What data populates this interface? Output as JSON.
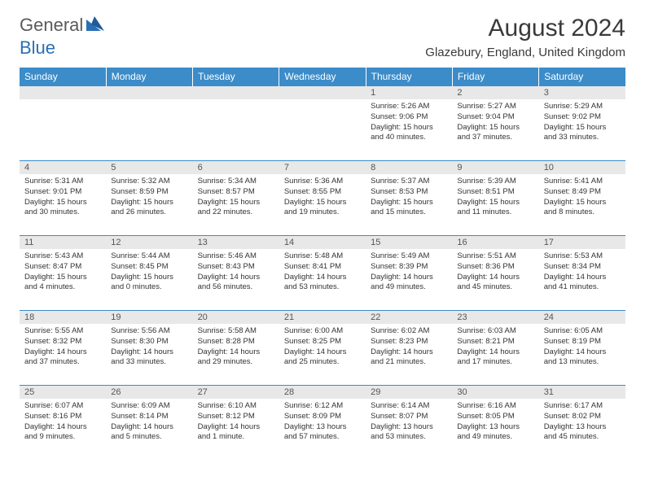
{
  "logo": {
    "text1": "General",
    "text2": "Blue"
  },
  "title": "August 2024",
  "location": "Glazebury, England, United Kingdom",
  "colors": {
    "header_bg": "#3b8cc9",
    "header_fg": "#ffffff",
    "daynum_bg": "#e8e8e8",
    "row_border": "#3b8cc9",
    "text": "#333333",
    "title_color": "#3a3a3a"
  },
  "weekdays": [
    "Sunday",
    "Monday",
    "Tuesday",
    "Wednesday",
    "Thursday",
    "Friday",
    "Saturday"
  ],
  "weeks": [
    [
      null,
      null,
      null,
      null,
      {
        "n": "1",
        "sr": "Sunrise: 5:26 AM",
        "ss": "Sunset: 9:06 PM",
        "dl": "Daylight: 15 hours and 40 minutes."
      },
      {
        "n": "2",
        "sr": "Sunrise: 5:27 AM",
        "ss": "Sunset: 9:04 PM",
        "dl": "Daylight: 15 hours and 37 minutes."
      },
      {
        "n": "3",
        "sr": "Sunrise: 5:29 AM",
        "ss": "Sunset: 9:02 PM",
        "dl": "Daylight: 15 hours and 33 minutes."
      }
    ],
    [
      {
        "n": "4",
        "sr": "Sunrise: 5:31 AM",
        "ss": "Sunset: 9:01 PM",
        "dl": "Daylight: 15 hours and 30 minutes."
      },
      {
        "n": "5",
        "sr": "Sunrise: 5:32 AM",
        "ss": "Sunset: 8:59 PM",
        "dl": "Daylight: 15 hours and 26 minutes."
      },
      {
        "n": "6",
        "sr": "Sunrise: 5:34 AM",
        "ss": "Sunset: 8:57 PM",
        "dl": "Daylight: 15 hours and 22 minutes."
      },
      {
        "n": "7",
        "sr": "Sunrise: 5:36 AM",
        "ss": "Sunset: 8:55 PM",
        "dl": "Daylight: 15 hours and 19 minutes."
      },
      {
        "n": "8",
        "sr": "Sunrise: 5:37 AM",
        "ss": "Sunset: 8:53 PM",
        "dl": "Daylight: 15 hours and 15 minutes."
      },
      {
        "n": "9",
        "sr": "Sunrise: 5:39 AM",
        "ss": "Sunset: 8:51 PM",
        "dl": "Daylight: 15 hours and 11 minutes."
      },
      {
        "n": "10",
        "sr": "Sunrise: 5:41 AM",
        "ss": "Sunset: 8:49 PM",
        "dl": "Daylight: 15 hours and 8 minutes."
      }
    ],
    [
      {
        "n": "11",
        "sr": "Sunrise: 5:43 AM",
        "ss": "Sunset: 8:47 PM",
        "dl": "Daylight: 15 hours and 4 minutes."
      },
      {
        "n": "12",
        "sr": "Sunrise: 5:44 AM",
        "ss": "Sunset: 8:45 PM",
        "dl": "Daylight: 15 hours and 0 minutes."
      },
      {
        "n": "13",
        "sr": "Sunrise: 5:46 AM",
        "ss": "Sunset: 8:43 PM",
        "dl": "Daylight: 14 hours and 56 minutes."
      },
      {
        "n": "14",
        "sr": "Sunrise: 5:48 AM",
        "ss": "Sunset: 8:41 PM",
        "dl": "Daylight: 14 hours and 53 minutes."
      },
      {
        "n": "15",
        "sr": "Sunrise: 5:49 AM",
        "ss": "Sunset: 8:39 PM",
        "dl": "Daylight: 14 hours and 49 minutes."
      },
      {
        "n": "16",
        "sr": "Sunrise: 5:51 AM",
        "ss": "Sunset: 8:36 PM",
        "dl": "Daylight: 14 hours and 45 minutes."
      },
      {
        "n": "17",
        "sr": "Sunrise: 5:53 AM",
        "ss": "Sunset: 8:34 PM",
        "dl": "Daylight: 14 hours and 41 minutes."
      }
    ],
    [
      {
        "n": "18",
        "sr": "Sunrise: 5:55 AM",
        "ss": "Sunset: 8:32 PM",
        "dl": "Daylight: 14 hours and 37 minutes."
      },
      {
        "n": "19",
        "sr": "Sunrise: 5:56 AM",
        "ss": "Sunset: 8:30 PM",
        "dl": "Daylight: 14 hours and 33 minutes."
      },
      {
        "n": "20",
        "sr": "Sunrise: 5:58 AM",
        "ss": "Sunset: 8:28 PM",
        "dl": "Daylight: 14 hours and 29 minutes."
      },
      {
        "n": "21",
        "sr": "Sunrise: 6:00 AM",
        "ss": "Sunset: 8:25 PM",
        "dl": "Daylight: 14 hours and 25 minutes."
      },
      {
        "n": "22",
        "sr": "Sunrise: 6:02 AM",
        "ss": "Sunset: 8:23 PM",
        "dl": "Daylight: 14 hours and 21 minutes."
      },
      {
        "n": "23",
        "sr": "Sunrise: 6:03 AM",
        "ss": "Sunset: 8:21 PM",
        "dl": "Daylight: 14 hours and 17 minutes."
      },
      {
        "n": "24",
        "sr": "Sunrise: 6:05 AM",
        "ss": "Sunset: 8:19 PM",
        "dl": "Daylight: 14 hours and 13 minutes."
      }
    ],
    [
      {
        "n": "25",
        "sr": "Sunrise: 6:07 AM",
        "ss": "Sunset: 8:16 PM",
        "dl": "Daylight: 14 hours and 9 minutes."
      },
      {
        "n": "26",
        "sr": "Sunrise: 6:09 AM",
        "ss": "Sunset: 8:14 PM",
        "dl": "Daylight: 14 hours and 5 minutes."
      },
      {
        "n": "27",
        "sr": "Sunrise: 6:10 AM",
        "ss": "Sunset: 8:12 PM",
        "dl": "Daylight: 14 hours and 1 minute."
      },
      {
        "n": "28",
        "sr": "Sunrise: 6:12 AM",
        "ss": "Sunset: 8:09 PM",
        "dl": "Daylight: 13 hours and 57 minutes."
      },
      {
        "n": "29",
        "sr": "Sunrise: 6:14 AM",
        "ss": "Sunset: 8:07 PM",
        "dl": "Daylight: 13 hours and 53 minutes."
      },
      {
        "n": "30",
        "sr": "Sunrise: 6:16 AM",
        "ss": "Sunset: 8:05 PM",
        "dl": "Daylight: 13 hours and 49 minutes."
      },
      {
        "n": "31",
        "sr": "Sunrise: 6:17 AM",
        "ss": "Sunset: 8:02 PM",
        "dl": "Daylight: 13 hours and 45 minutes."
      }
    ]
  ]
}
